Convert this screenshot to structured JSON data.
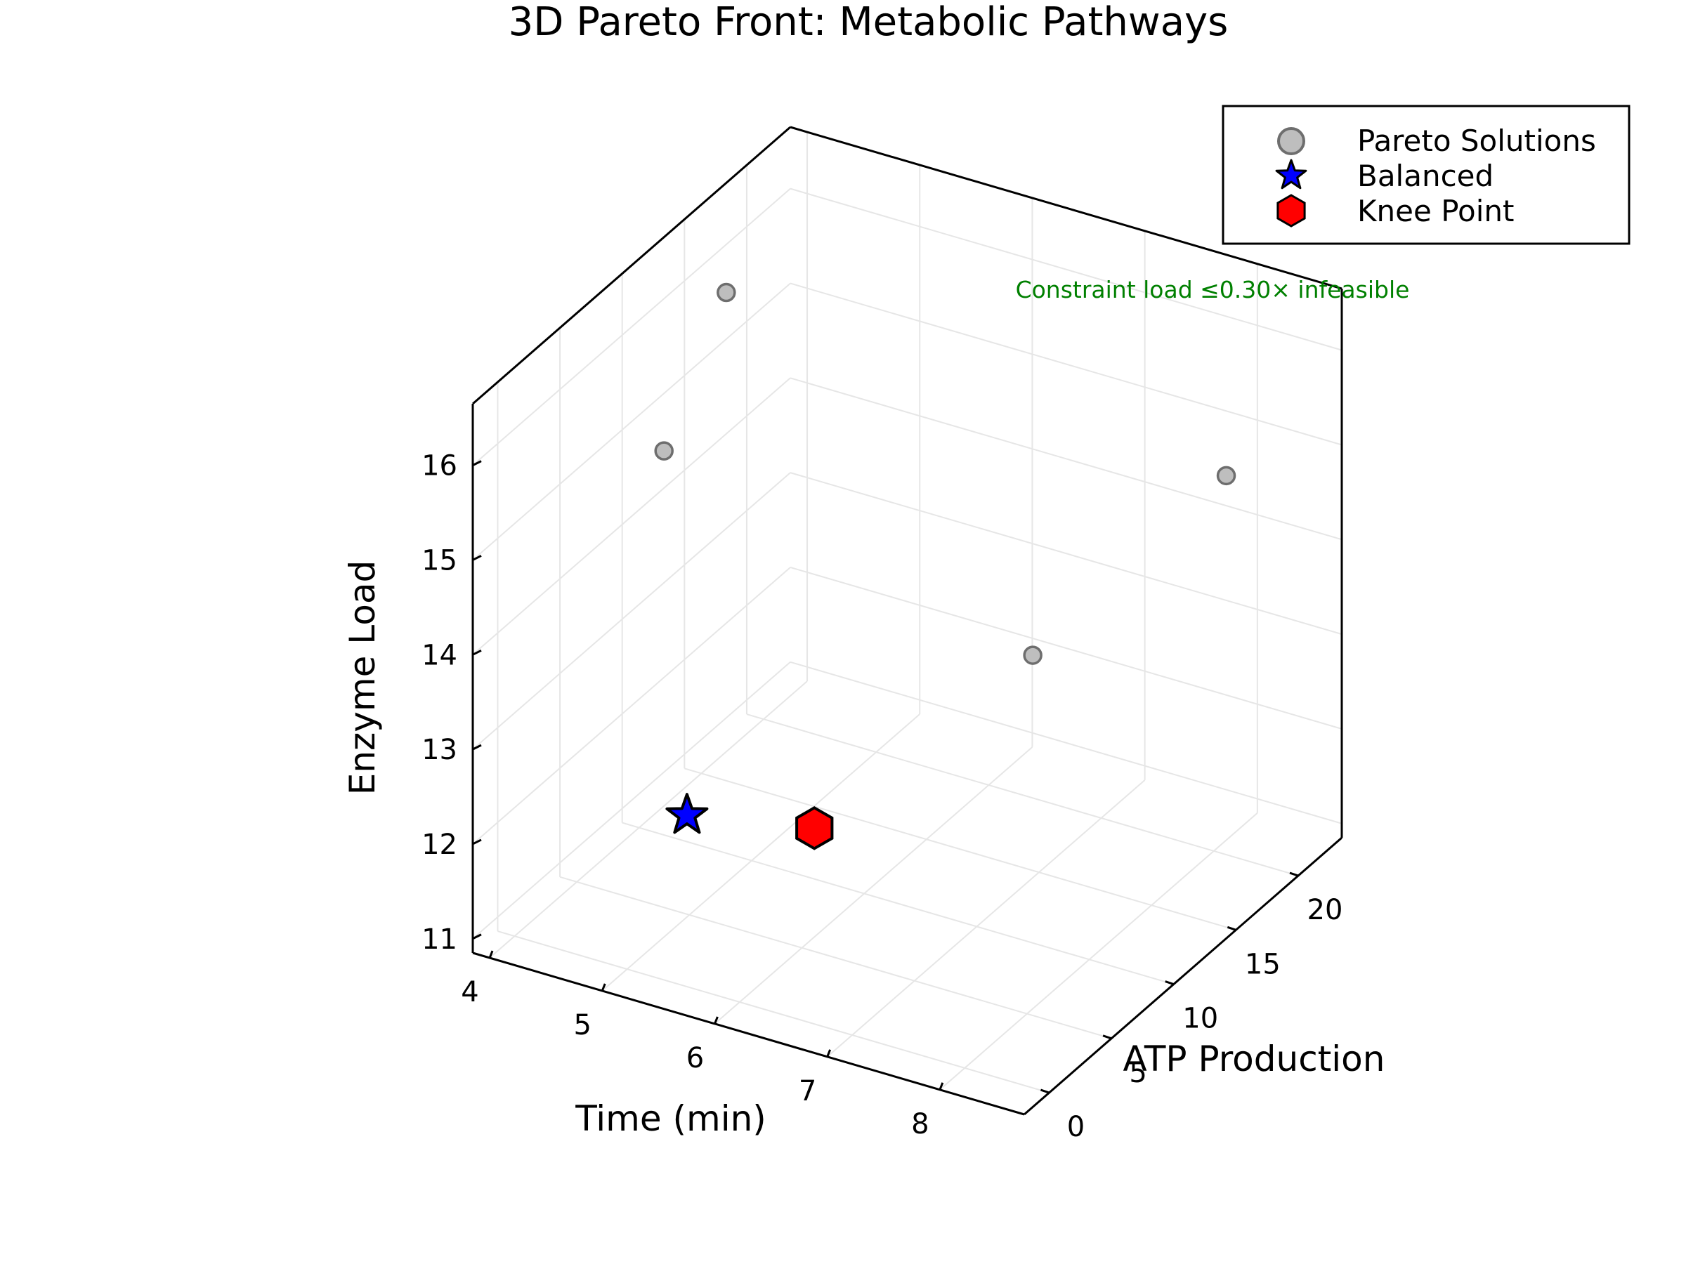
{
  "chart_data": {
    "type": "scatter3d",
    "title": "3D Pareto Front: Metabolic Pathways",
    "xlabel": "Time (min)",
    "ylabel": "ATP Production",
    "zlabel": "Enzyme Load",
    "x_ticks": [
      4,
      5,
      6,
      7,
      8
    ],
    "y_ticks": [
      0,
      5,
      10,
      15,
      20
    ],
    "z_ticks": [
      11,
      12,
      13,
      14,
      15,
      16
    ],
    "xlim": [
      3.85,
      8.75
    ],
    "ylim": [
      -2,
      23.5
    ],
    "zlim": [
      10.85,
      16.65
    ],
    "grid": true,
    "legend_position": "upper right",
    "series": [
      {
        "name": "Pareto Solutions",
        "marker": "circle",
        "color": "#bebebe",
        "edge_color": "#6e6e6e",
        "points": [
          {
            "x": 4.0,
            "y": 17.0,
            "z": 15.7
          },
          {
            "x": 4.0,
            "y": 12.0,
            "z": 14.6
          },
          {
            "x": 7.0,
            "y": 14.5,
            "z": 13.2
          },
          {
            "x": 8.0,
            "y": 21.0,
            "z": 14.7
          }
        ]
      },
      {
        "name": "Balanced",
        "marker": "star",
        "color": "#0000ff",
        "edge_color": "#000000",
        "points": [
          {
            "x": 5.2,
            "y": 3.0,
            "z": 12.2
          }
        ]
      },
      {
        "name": "Knee Point",
        "marker": "hexagon",
        "color": "#ff0000",
        "edge_color": "#000000",
        "points": [
          {
            "x": 6.0,
            "y": 6.0,
            "z": 12.0
          }
        ]
      }
    ],
    "annotations": [
      {
        "text": "Constraint load ≤0.30× infeasible",
        "color": "#008000"
      }
    ]
  },
  "legend": {
    "items": [
      {
        "label": "Pareto Solutions"
      },
      {
        "label": "Balanced"
      },
      {
        "label": "Knee Point"
      }
    ]
  }
}
